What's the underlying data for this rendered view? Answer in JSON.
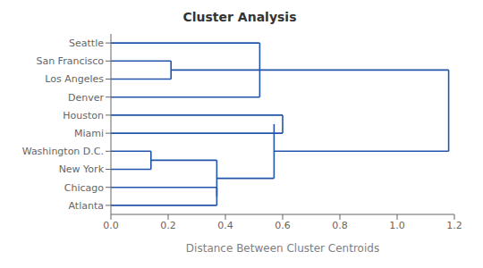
{
  "chart_data": {
    "type": "dendrogram",
    "title": "Cluster Analysis",
    "xlabel": "Distance Between Cluster Centroids",
    "color": "#2255aa",
    "grid": false,
    "xlim": [
      0.0,
      1.2
    ],
    "xticks": [
      {
        "value": 0.0,
        "label": "0.0"
      },
      0.2,
      0.4,
      0.6,
      0.8,
      {
        "value": 1.0,
        "label": "1.0"
      },
      1.2
    ],
    "ylim": [
      -0.5,
      9.5
    ],
    "yticks": [
      {
        "value": 9,
        "label": "Seattle"
      },
      {
        "value": 8,
        "label": "San Francisco"
      },
      {
        "value": 7,
        "label": "Los Angeles"
      },
      {
        "value": 6,
        "label": "Denver"
      },
      {
        "value": 5,
        "label": "Houston"
      },
      {
        "value": 4,
        "label": "Miami"
      },
      {
        "value": 3,
        "label": "Washington D.C."
      },
      {
        "value": 2,
        "label": "New York"
      },
      {
        "value": 1,
        "label": "Chicago"
      },
      {
        "value": 0,
        "label": "Atlanta"
      }
    ],
    "segments": [
      {
        "x": [
          0.0,
          0.52
        ],
        "y": [
          9,
          9
        ]
      },
      {
        "x": [
          0.0,
          0.21
        ],
        "y": [
          8,
          8
        ]
      },
      {
        "x": [
          0.0,
          0.21
        ],
        "y": [
          7,
          7
        ]
      },
      {
        "x": [
          0.21,
          0.21
        ],
        "y": [
          8,
          7
        ]
      },
      {
        "x": [
          0.21,
          0.52
        ],
        "y": [
          7.5,
          7.5
        ]
      },
      {
        "x": [
          0.0,
          0.52
        ],
        "y": [
          6,
          6
        ]
      },
      {
        "x": [
          0.52,
          0.52
        ],
        "y": [
          9,
          6
        ]
      },
      {
        "x": [
          0.52,
          1.18
        ],
        "y": [
          7.5,
          7.5
        ]
      },
      {
        "x": [
          0.0,
          0.6
        ],
        "y": [
          5,
          5
        ]
      },
      {
        "x": [
          0.0,
          0.6
        ],
        "y": [
          4,
          4
        ]
      },
      {
        "x": [
          0.6,
          0.6
        ],
        "y": [
          5,
          4
        ]
      },
      {
        "x": [
          0.6,
          0.6
        ],
        "y": [
          4.5,
          4.5
        ]
      },
      {
        "x": [
          0.0,
          0.14
        ],
        "y": [
          3,
          3
        ]
      },
      {
        "x": [
          0.0,
          0.14
        ],
        "y": [
          2,
          2
        ]
      },
      {
        "x": [
          0.14,
          0.14
        ],
        "y": [
          3,
          2
        ]
      },
      {
        "x": [
          0.14,
          0.37
        ],
        "y": [
          2.5,
          2.5
        ]
      },
      {
        "x": [
          0.0,
          0.37
        ],
        "y": [
          1,
          1
        ]
      },
      {
        "x": [
          0.0,
          0.37
        ],
        "y": [
          0,
          0
        ]
      },
      {
        "x": [
          0.37,
          0.37
        ],
        "y": [
          1,
          0
        ]
      },
      {
        "x": [
          0.37,
          0.37
        ],
        "y": [
          0.5,
          0.5
        ]
      },
      {
        "x": [
          0.37,
          0.37
        ],
        "y": [
          2.5,
          0.5
        ]
      },
      {
        "x": [
          0.37,
          0.57
        ],
        "y": [
          1.5,
          1.5
        ]
      },
      {
        "x": [
          0.57,
          0.57
        ],
        "y": [
          4.5,
          1.5
        ]
      },
      {
        "x": [
          0.57,
          1.18
        ],
        "y": [
          3.0,
          3.0
        ]
      },
      {
        "x": [
          1.18,
          1.18
        ],
        "y": [
          7.5,
          3.0
        ]
      }
    ]
  }
}
